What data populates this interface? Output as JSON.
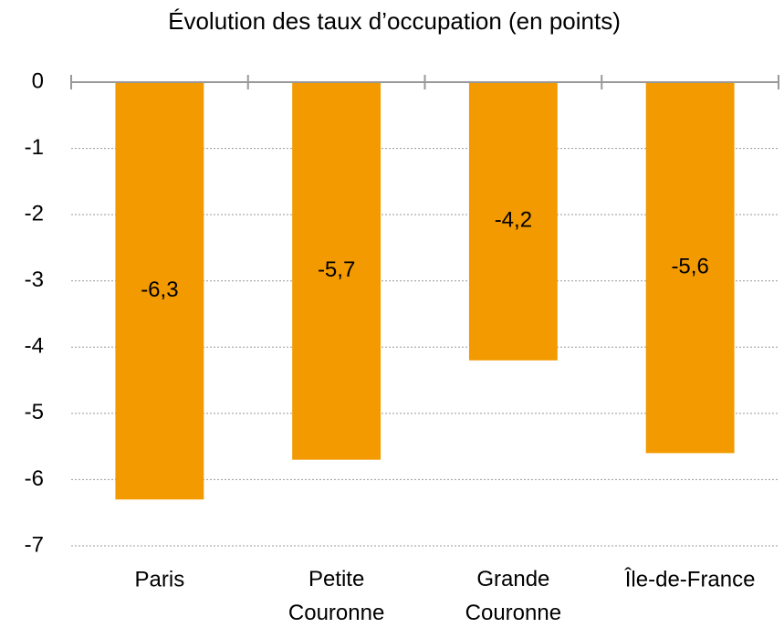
{
  "chart_data": {
    "type": "bar",
    "title": "Évolution des taux d’occupation (en points)",
    "categories": [
      "Paris",
      "Petite Couronne",
      "Grande Couronne",
      "Île-de-France"
    ],
    "values": [
      -6.3,
      -5.7,
      -4.2,
      -5.6
    ],
    "value_labels": [
      "-6,3",
      "-5,7",
      "-4,2",
      "-5,6"
    ],
    "color": "#f29a00",
    "ylim": [
      -7,
      0
    ],
    "yticks": [
      0,
      -1,
      -2,
      -3,
      -4,
      -5,
      -6,
      -7
    ],
    "grid": true
  }
}
